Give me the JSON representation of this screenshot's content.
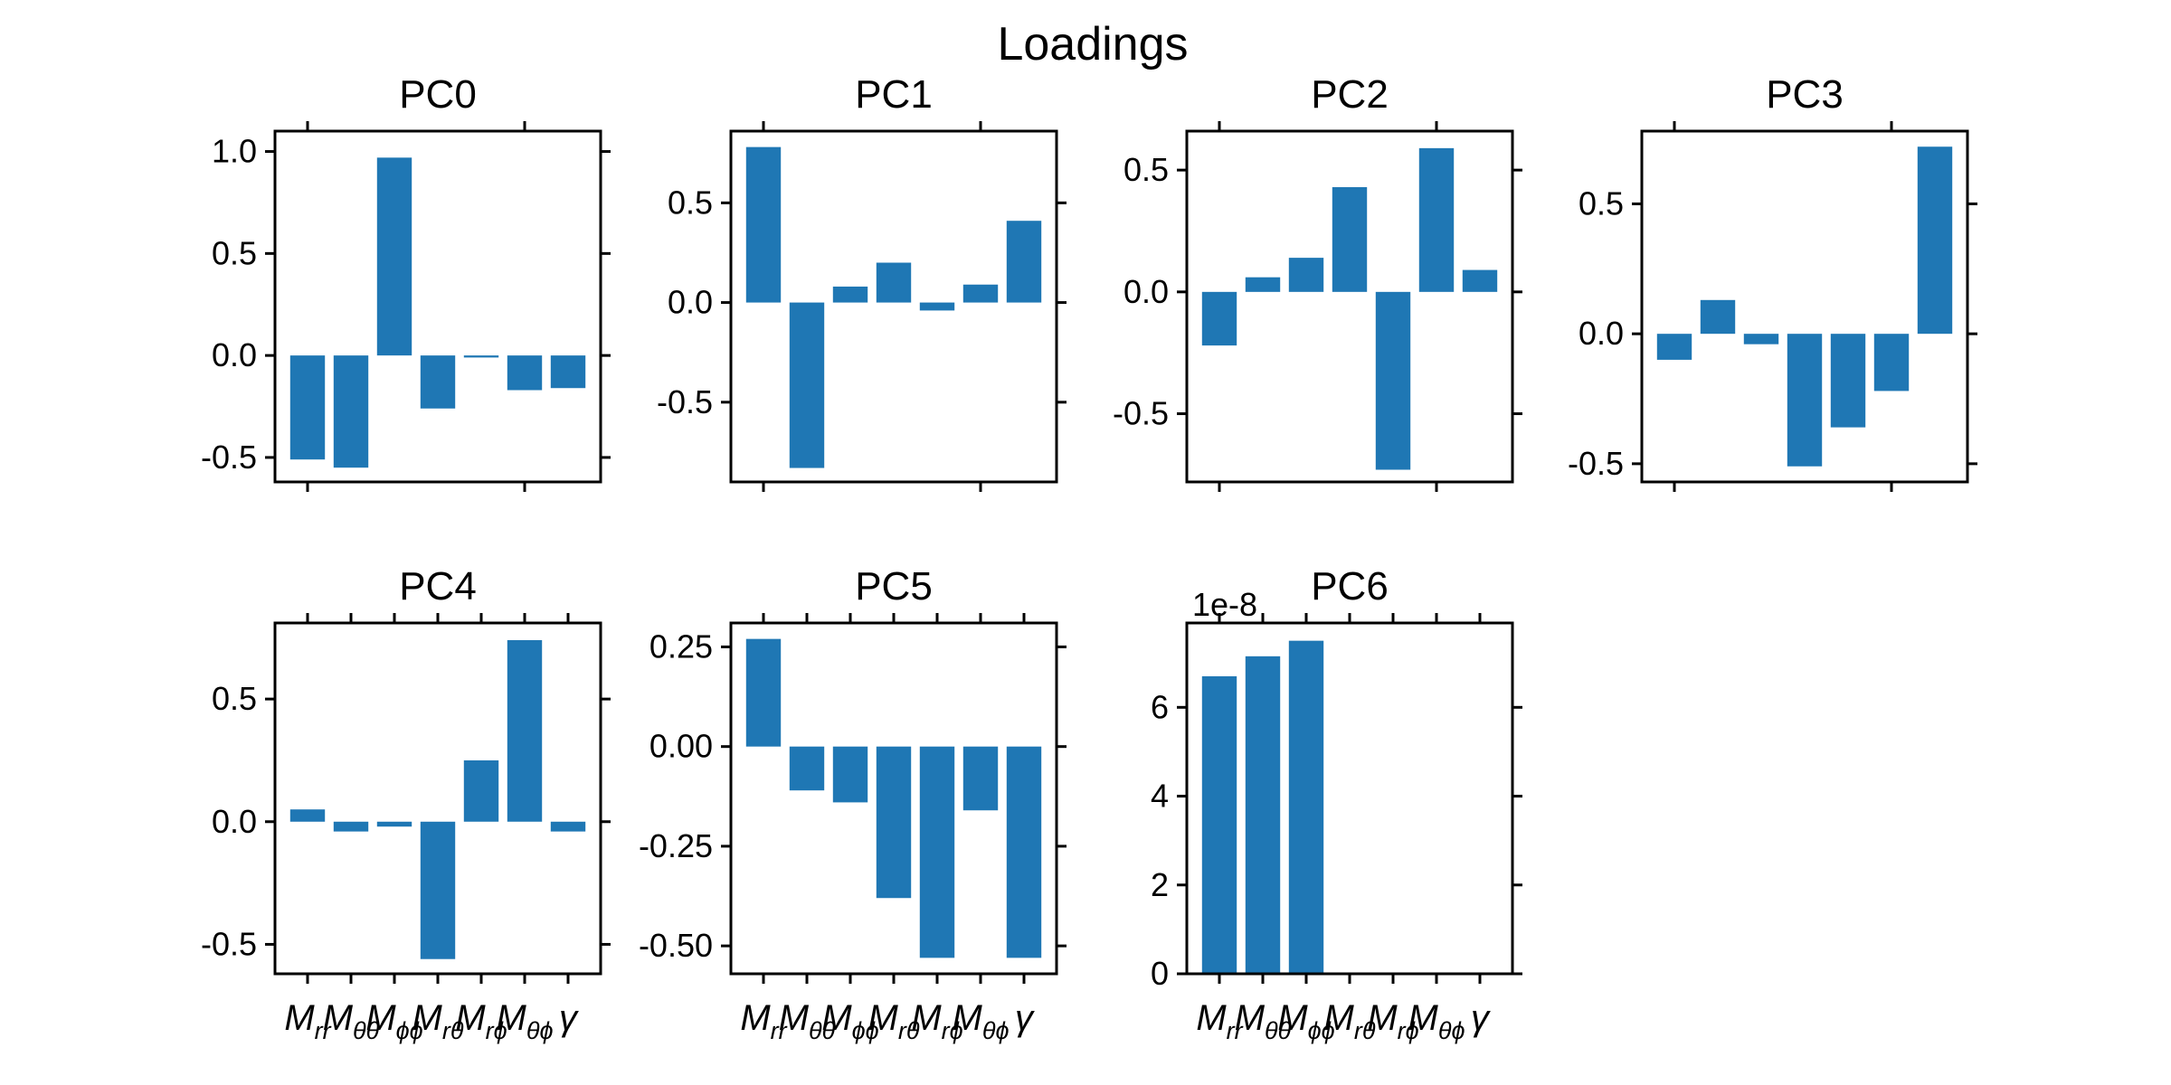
{
  "figure": {
    "title": "Loadings"
  },
  "chart_data": {
    "type": "bar",
    "suptitle": "Loadings",
    "categories": [
      {
        "base": "M",
        "sub": "rr"
      },
      {
        "base": "M",
        "sub": "θθ"
      },
      {
        "base": "M",
        "sub": "ϕϕ"
      },
      {
        "base": "M",
        "sub": "rθ"
      },
      {
        "base": "M",
        "sub": "rϕ"
      },
      {
        "base": "M",
        "sub": "θϕ"
      },
      {
        "base": "γ",
        "sub": ""
      }
    ],
    "bar_color": "#1f77b4",
    "shared_x": true,
    "x_tick_labels_only_bottom": true,
    "panels": [
      {
        "title": "PC0",
        "ylim": [
          -0.62,
          1.1
        ],
        "yticks": [
          1.0,
          0.5,
          0.0,
          -0.5
        ],
        "ytick_labels": [
          "1.0",
          "0.5",
          "0.0",
          "-0.5"
        ],
        "values": [
          -0.51,
          -0.55,
          0.97,
          -0.26,
          -0.01,
          -0.17,
          -0.16
        ],
        "multiplier": ""
      },
      {
        "title": "PC1",
        "ylim": [
          -0.9,
          0.86
        ],
        "yticks": [
          0.5,
          0.0,
          -0.5
        ],
        "ytick_labels": [
          "0.5",
          "0.0",
          "-0.5"
        ],
        "values": [
          0.78,
          -0.83,
          0.08,
          0.2,
          -0.04,
          0.09,
          0.41
        ],
        "multiplier": ""
      },
      {
        "title": "PC2",
        "ylim": [
          -0.78,
          0.66
        ],
        "yticks": [
          0.5,
          0.0,
          -0.5
        ],
        "ytick_labels": [
          "0.5",
          "0.0",
          "-0.5"
        ],
        "values": [
          -0.22,
          0.06,
          0.14,
          0.43,
          -0.73,
          0.59,
          0.09
        ],
        "multiplier": ""
      },
      {
        "title": "PC3",
        "ylim": [
          -0.57,
          0.78
        ],
        "yticks": [
          0.5,
          0.0,
          -0.5
        ],
        "ytick_labels": [
          "0.5",
          "0.0",
          "-0.5"
        ],
        "values": [
          -0.1,
          0.13,
          -0.04,
          -0.51,
          -0.36,
          -0.22,
          0.72
        ],
        "multiplier": ""
      },
      {
        "title": "PC4",
        "ylim": [
          -0.62,
          0.81
        ],
        "yticks": [
          0.5,
          0.0,
          -0.5
        ],
        "ytick_labels": [
          "0.5",
          "0.0",
          "-0.5"
        ],
        "values": [
          0.05,
          -0.04,
          -0.02,
          -0.56,
          0.25,
          0.74,
          -0.04
        ],
        "multiplier": ""
      },
      {
        "title": "PC5",
        "ylim": [
          -0.57,
          0.31
        ],
        "yticks": [
          0.25,
          0.0,
          -0.25,
          -0.5
        ],
        "ytick_labels": [
          "0.25",
          "0.00",
          "-0.25",
          "-0.50"
        ],
        "values": [
          0.27,
          -0.11,
          -0.14,
          -0.38,
          -0.53,
          -0.16,
          -0.53
        ],
        "multiplier": ""
      },
      {
        "title": "PC6",
        "ylim": [
          0,
          7.9
        ],
        "yticks": [
          0,
          2,
          4,
          6
        ],
        "ytick_labels": [
          "0",
          "2",
          "4",
          "6"
        ],
        "values": [
          6.7,
          7.15,
          7.5,
          0,
          0,
          0,
          0
        ],
        "multiplier": "1e-8"
      }
    ]
  }
}
